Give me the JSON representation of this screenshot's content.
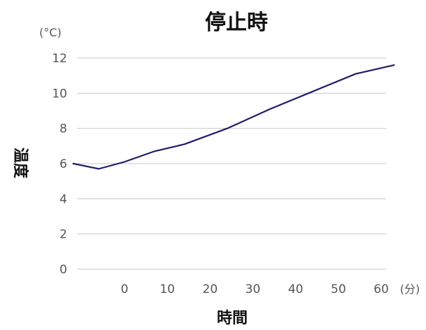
{
  "chart_data": {
    "type": "line",
    "title": "停止時",
    "xlabel": "時間",
    "ylabel": "温度",
    "x_unit": "(分)",
    "y_unit": "(°C)",
    "x_ticks": [
      "0",
      "10",
      "20",
      "30",
      "40",
      "50",
      "60"
    ],
    "y_ticks": [
      "0",
      "2",
      "4",
      "6",
      "8",
      "10",
      "12"
    ],
    "xlim": [
      -12,
      67
    ],
    "ylim": [
      0,
      12
    ],
    "grid": "horizontal",
    "line_color": "#1f1d6b",
    "series": [
      {
        "x": [
          -12,
          -6,
          0,
          7,
          14,
          24,
          34,
          44,
          54,
          63
        ],
        "y": [
          6.0,
          5.7,
          6.1,
          6.7,
          7.1,
          8.0,
          9.1,
          10.1,
          11.1,
          11.6
        ]
      }
    ]
  }
}
